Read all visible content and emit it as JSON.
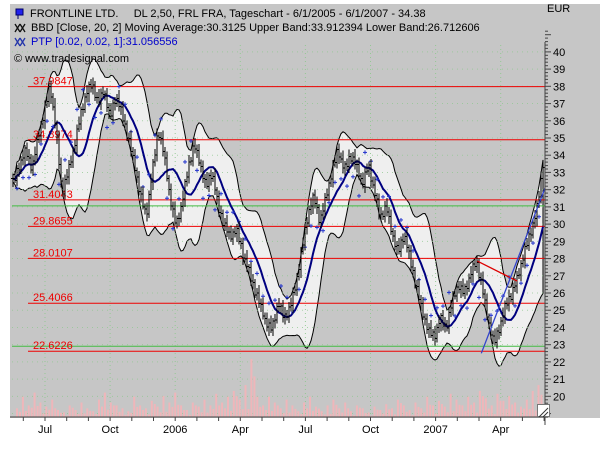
{
  "header": {
    "title": "FRONTLINE LTD.     DL 2,50, FRL FRA, Tageschart - 6/1/2005 - 6/1/2007 - 34.38",
    "bbd": "BBD [Close, 20, 2] Moving Average:30.3125 Upper Band:33.912394 Lower Band:26.712606",
    "ptp": "PTP [0.02, 0.02, 1]:31.056556",
    "copyright": "© www.tradesignal.com"
  },
  "chart_data": {
    "type": "candlestick",
    "instrument": "FRONTLINE LTD. DL 2,50, FRL FRA",
    "timeframe": "Tageschart",
    "date_range": [
      "6/1/2005",
      "6/1/2007"
    ],
    "last_price": 34.38,
    "y_axis": {
      "label": "EUR",
      "min": 20,
      "max": 40,
      "step": 1,
      "ylim": [
        18.8,
        40.4
      ]
    },
    "x_axis": {
      "months_total": 24,
      "labels": [
        {
          "text": "Jul",
          "month": 1
        },
        {
          "text": "Oct",
          "month": 4
        },
        {
          "text": "2006",
          "month": 7
        },
        {
          "text": "Apr",
          "month": 10
        },
        {
          "text": "Jul",
          "month": 13
        },
        {
          "text": "Oct",
          "month": 16
        },
        {
          "text": "2007",
          "month": 19
        },
        {
          "text": "Apr",
          "month": 22
        }
      ]
    },
    "levels": [
      37.9847,
      34.8974,
      31.4043,
      29.8655,
      28.0107,
      25.4066,
      22.6226
    ],
    "green_lines": [
      31.0566,
      22.91
    ],
    "grid_quarter_months": [
      1,
      4,
      7,
      10,
      13,
      16,
      19,
      22
    ],
    "bollinger": {
      "input": "Close",
      "period": 20,
      "deviation": 2,
      "moving_average": 30.3125,
      "upper_band": 33.912394,
      "lower_band": 26.712606
    },
    "ptp": {
      "params": [
        0.02,
        0.02,
        1
      ],
      "value": 31.056556
    },
    "close_keypoints": [
      [
        0.09,
        32.5
      ],
      [
        0.36,
        33.5
      ],
      [
        0.63,
        34.3
      ],
      [
        0.9,
        33.2
      ],
      [
        1.17,
        35.0
      ],
      [
        1.44,
        36.5
      ],
      [
        1.71,
        38.0
      ],
      [
        1.98,
        35.5
      ],
      [
        2.25,
        31.8
      ],
      [
        2.52,
        33.0
      ],
      [
        2.79,
        34.5
      ],
      [
        3.06,
        36.2
      ],
      [
        3.33,
        37.5
      ],
      [
        3.6,
        38.2
      ],
      [
        3.87,
        37.0
      ],
      [
        4.14,
        37.8
      ],
      [
        4.41,
        36.2
      ],
      [
        4.68,
        37.4
      ],
      [
        4.95,
        36.4
      ],
      [
        5.23,
        35.0
      ],
      [
        5.5,
        33.5
      ],
      [
        5.77,
        31.8
      ],
      [
        6.04,
        30.4
      ],
      [
        6.31,
        33.0
      ],
      [
        6.58,
        35.5
      ],
      [
        6.85,
        34.0
      ],
      [
        7.12,
        31.5
      ],
      [
        7.39,
        29.9
      ],
      [
        7.66,
        31.2
      ],
      [
        7.93,
        33.3
      ],
      [
        8.2,
        34.6
      ],
      [
        8.47,
        33.5
      ],
      [
        8.74,
        32.2
      ],
      [
        9.01,
        33.0
      ],
      [
        9.28,
        31.0
      ],
      [
        9.55,
        30.0
      ],
      [
        9.82,
        29.2
      ],
      [
        10.09,
        29.8
      ],
      [
        10.36,
        28.4
      ],
      [
        10.63,
        27.4
      ],
      [
        10.9,
        26.3
      ],
      [
        11.17,
        25.3
      ],
      [
        11.44,
        24.3
      ],
      [
        11.71,
        23.9
      ],
      [
        11.98,
        25.4
      ],
      [
        12.25,
        24.6
      ],
      [
        12.52,
        25.1
      ],
      [
        12.79,
        26.6
      ],
      [
        13.06,
        28.6
      ],
      [
        13.33,
        30.6
      ],
      [
        13.6,
        31.6
      ],
      [
        13.87,
        30.1
      ],
      [
        14.14,
        31.6
      ],
      [
        14.41,
        33.1
      ],
      [
        14.68,
        34.3
      ],
      [
        14.95,
        33.1
      ],
      [
        15.23,
        34.0
      ],
      [
        15.5,
        33.4
      ],
      [
        15.77,
        32.4
      ],
      [
        16.04,
        33.4
      ],
      [
        16.31,
        31.9
      ],
      [
        16.58,
        30.4
      ],
      [
        16.85,
        31.0
      ],
      [
        17.12,
        29.4
      ],
      [
        17.39,
        28.4
      ],
      [
        17.66,
        29.4
      ],
      [
        17.93,
        27.9
      ],
      [
        18.2,
        26.4
      ],
      [
        18.47,
        24.9
      ],
      [
        18.74,
        23.9
      ],
      [
        19.01,
        23.4
      ],
      [
        19.28,
        24.5
      ],
      [
        19.55,
        24.0
      ],
      [
        19.82,
        25.5
      ],
      [
        20.09,
        26.5
      ],
      [
        20.36,
        26.0
      ],
      [
        20.63,
        27.0
      ],
      [
        20.9,
        27.9
      ],
      [
        21.17,
        26.3
      ],
      [
        21.44,
        24.4
      ],
      [
        21.71,
        23.1
      ],
      [
        21.98,
        24.1
      ],
      [
        22.25,
        25.4
      ],
      [
        22.52,
        26.0
      ],
      [
        22.79,
        27.0
      ],
      [
        23.06,
        28.4
      ],
      [
        23.33,
        29.4
      ],
      [
        23.6,
        30.6
      ],
      [
        23.87,
        33.0
      ],
      [
        23.97,
        34.38
      ]
    ],
    "trendlines": [
      {
        "color": "#dd0000",
        "from": [
          20.95,
          27.85
        ],
        "to": [
          22.75,
          26.69
        ]
      },
      {
        "color": "#3344cc",
        "from": [
          21.13,
          22.5
        ],
        "to": [
          24.0,
          32.09
        ]
      }
    ],
    "volume_relative": [
      0.15,
      0.35,
      0.2,
      0.42,
      0.25,
      0.18,
      0.3,
      0.12,
      0.08,
      0.2,
      0.12,
      0.25,
      0.15,
      0.1,
      0.3,
      0.42,
      0.25,
      0.2,
      0.15,
      0.1,
      0.35,
      0.2,
      0.15,
      0.28,
      0.18,
      0.36,
      0.25,
      0.42,
      0.2,
      0.12,
      0.25,
      0.18,
      0.3,
      0.2,
      0.4,
      0.25,
      0.35,
      0.45,
      0.3,
      0.55,
      1.0,
      0.35,
      0.2,
      0.35,
      0.25,
      0.15,
      0.3,
      0.2,
      0.1,
      0.25,
      0.35,
      0.18,
      0.1,
      0.2,
      0.3,
      0.15,
      0.25,
      0.1,
      0.2,
      0.15,
      0.08,
      0.18,
      0.12,
      0.22,
      0.15,
      0.3,
      0.2,
      0.12,
      0.25,
      0.15,
      0.35,
      0.2,
      0.28,
      0.18,
      0.4,
      0.3,
      0.2,
      0.35,
      0.25,
      0.45,
      0.32,
      0.2,
      0.4,
      0.28,
      0.36,
      0.25,
      0.18,
      0.3,
      0.45,
      0.55
    ],
    "bar_jitter": [
      0.3,
      -0.25,
      0.45,
      -0.4,
      0.15,
      -0.1,
      0.5,
      -0.35,
      0.2,
      -0.5,
      0.35,
      -0.15,
      0.4,
      -0.3,
      0.1,
      -0.45
    ],
    "bar_range": [
      0.5,
      0.8,
      0.35,
      0.65,
      0.45,
      0.9,
      0.3,
      0.6,
      0.75,
      0.4,
      0.55,
      0.85,
      0.5,
      0.7,
      0.35,
      0.6
    ],
    "colors": {
      "candle": "#000000",
      "band_fill": "#efefef",
      "band_outline": "#000000",
      "ma": "#000080",
      "ptp": "#2233cc",
      "level": "#ee0000",
      "grid": "#8fc98f",
      "green_line": "#44bb44",
      "volume": "#efb6ba",
      "axis": "#444444",
      "label": "#000000"
    }
  }
}
